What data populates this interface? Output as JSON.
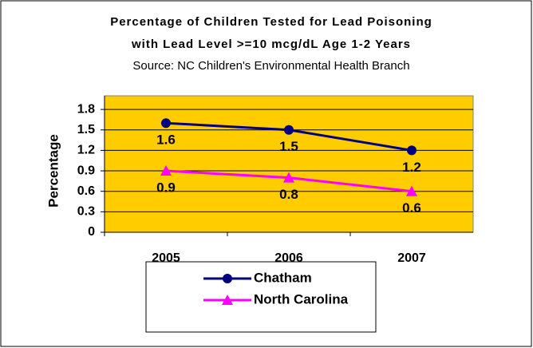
{
  "chart_data": {
    "type": "line",
    "title": "Percentage of Children Tested for Lead Poisoning",
    "title_line2": "with Lead Level >=10 mcg/dL Age 1-2 Years",
    "subtitle": "Source: NC Children's Environmental Health Branch",
    "y_label": "Percentage",
    "categories": [
      "2005",
      "2006",
      "2007"
    ],
    "series": [
      {
        "name": "Chatham",
        "color": "#000080",
        "marker": "circle",
        "values": [
          1.6,
          1.5,
          1.2
        ]
      },
      {
        "name": "North Carolina",
        "color": "#ff00ff",
        "marker": "triangle",
        "values": [
          0.9,
          0.8,
          0.6
        ]
      }
    ],
    "ylim": [
      0,
      2.0
    ],
    "yticks": [
      0,
      0.3,
      0.6,
      0.9,
      1.2,
      1.5,
      1.8
    ],
    "grid": true,
    "legend": "bottom",
    "plot_background": "#ffcc00"
  }
}
